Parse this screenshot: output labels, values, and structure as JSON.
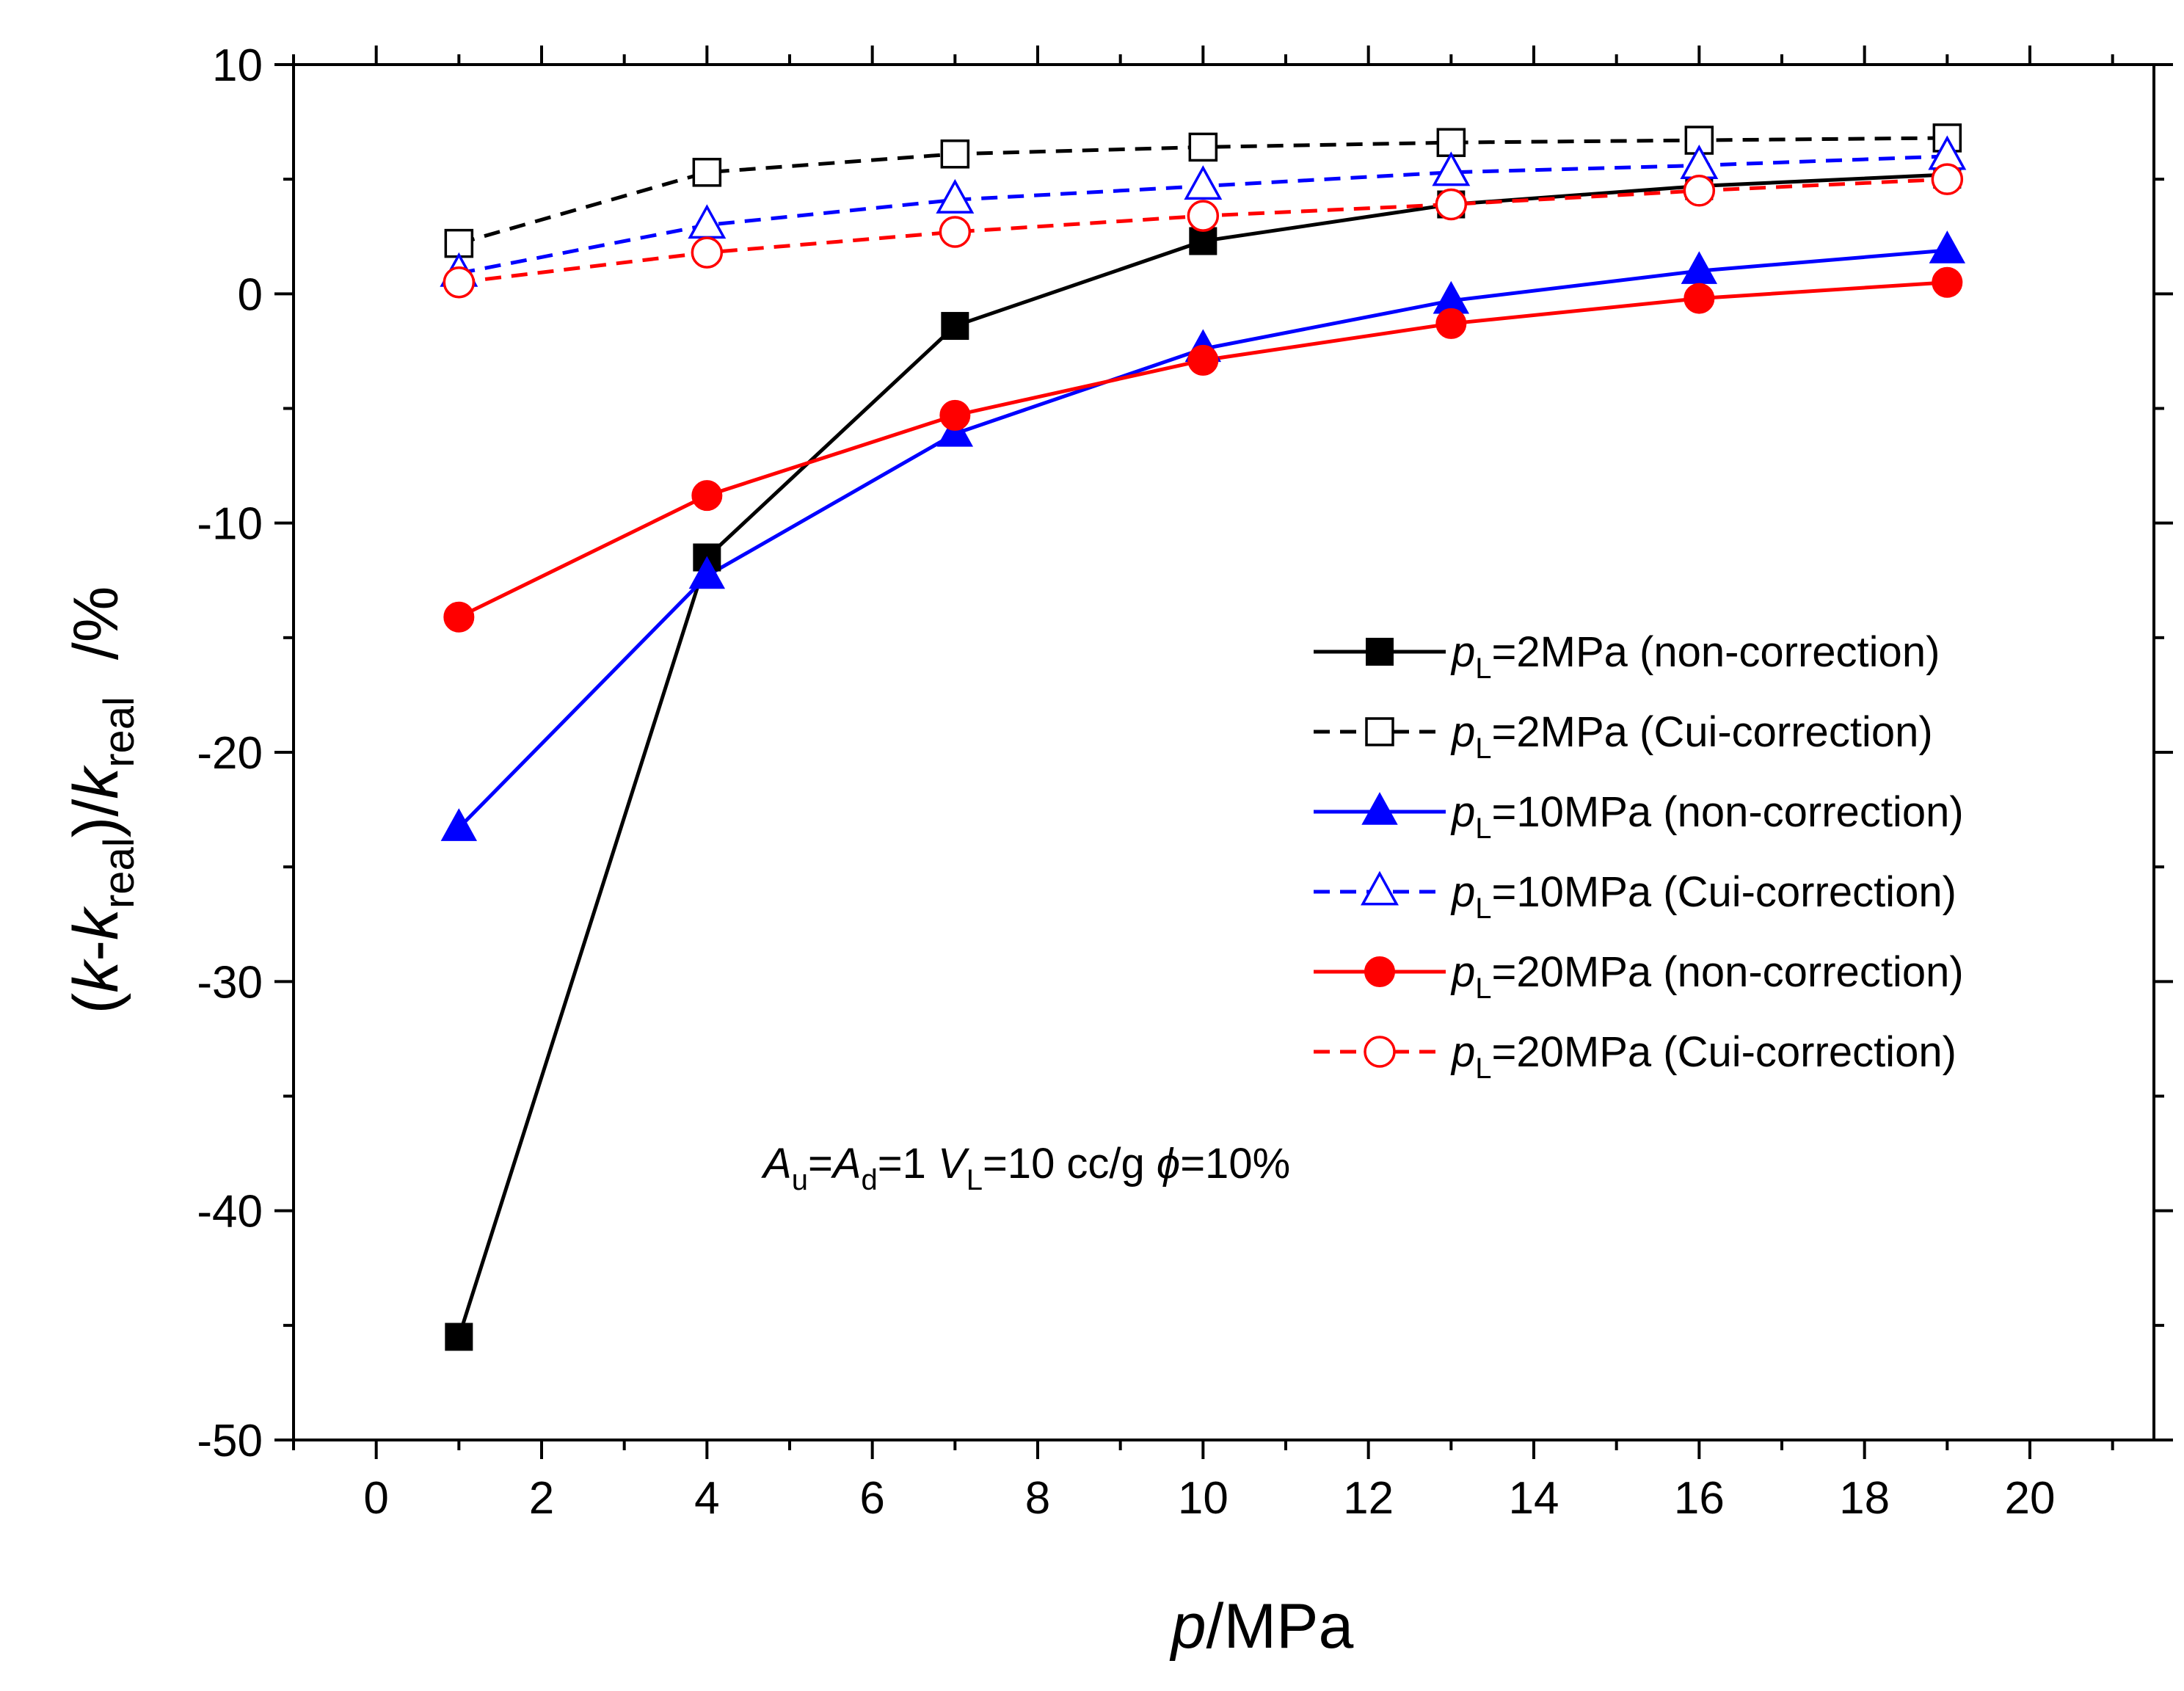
{
  "chart_data": {
    "type": "line",
    "xlabel": {
      "italic": "p",
      "rest": "/MPa"
    },
    "ylabel": {
      "open": "(",
      "k": "k",
      "dash": "-",
      "k2": "k",
      "sub": "real",
      "mid": ")/",
      "k3": "k",
      "sub2": "real",
      "unit": "/%"
    },
    "xlim": [
      -1,
      21.5
    ],
    "ylim": [
      -50,
      10
    ],
    "xticks": [
      0,
      2,
      4,
      6,
      8,
      10,
      12,
      14,
      16,
      18,
      20
    ],
    "yticks": [
      10,
      0,
      -10,
      -20,
      -30,
      -40,
      -50
    ],
    "x": [
      1,
      4,
      7,
      10,
      13,
      16,
      19
    ],
    "series": [
      {
        "p": "p",
        "sub": "L",
        "rest": "=2MPa (non-correction)",
        "color": "#000000",
        "dash": "solid",
        "marker": "square",
        "filled": true,
        "values": [
          -45.5,
          -11.5,
          -1.4,
          2.3,
          3.9,
          4.7,
          5.2
        ]
      },
      {
        "p": "p",
        "sub": "L",
        "rest": "=2MPa (Cui-correction)",
        "color": "#000000",
        "dash": "dashed",
        "marker": "square",
        "filled": false,
        "values": [
          2.2,
          5.3,
          6.1,
          6.4,
          6.6,
          6.7,
          6.8
        ]
      },
      {
        "p": "p",
        "sub": "L",
        "rest": "=10MPa (non-correction)",
        "color": "#0000ff",
        "dash": "solid",
        "marker": "triangle",
        "filled": true,
        "values": [
          -23.3,
          -12.3,
          -6.1,
          -2.4,
          -0.3,
          1.0,
          1.9
        ]
      },
      {
        "p": "p",
        "sub": "L",
        "rest": "=10MPa (Cui-correction)",
        "color": "#0000ff",
        "dash": "dashed",
        "marker": "triangle",
        "filled": false,
        "values": [
          0.9,
          3.0,
          4.1,
          4.7,
          5.3,
          5.6,
          6.0
        ]
      },
      {
        "p": "p",
        "sub": "L",
        "rest": "=20MPa (non-correction)",
        "color": "#ff0000",
        "dash": "solid",
        "marker": "circle",
        "filled": true,
        "values": [
          -14.1,
          -8.8,
          -5.3,
          -2.9,
          -1.3,
          -0.2,
          0.5
        ]
      },
      {
        "p": "p",
        "sub": "L",
        "rest": "=20MPa (Cui-correction)",
        "color": "#ff0000",
        "dash": "dashed",
        "marker": "circle",
        "filled": false,
        "values": [
          0.5,
          1.8,
          2.7,
          3.4,
          3.9,
          4.5,
          5.0
        ]
      }
    ],
    "annotation": {
      "a1": "A",
      "a1sub": "u",
      "eq1": "=",
      "a2": "A",
      "a2sub": "d",
      "eq2": "=1 ",
      "v": "V",
      "vsub": "L",
      "eq3": "=10 cc/g ",
      "phi": "ϕ",
      "eq4": "=10%"
    },
    "legend_position": "right"
  }
}
